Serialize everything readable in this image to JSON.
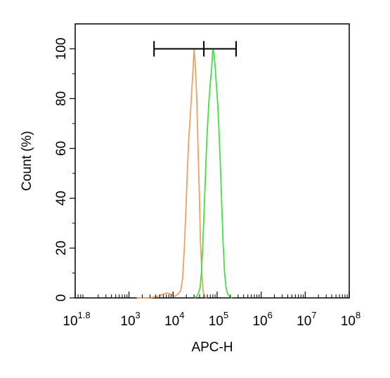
{
  "chart_data": {
    "type": "histogram",
    "title": "",
    "xlabel": "APC-H",
    "ylabel": "Count  (%)",
    "x_scale": "log",
    "xlim": [
      60,
      100000000
    ],
    "ylim": [
      0,
      110
    ],
    "x_ticks": [
      {
        "value": 60,
        "base": "10",
        "exp": "1.8"
      },
      {
        "value": 1000,
        "base": "10",
        "exp": "3"
      },
      {
        "value": 10000,
        "base": "10",
        "exp": "4"
      },
      {
        "value": 100000,
        "base": "10",
        "exp": "5"
      },
      {
        "value": 1000000,
        "base": "10",
        "exp": "6"
      },
      {
        "value": 10000000,
        "base": "10",
        "exp": "7"
      },
      {
        "value": 100000000,
        "base": "10",
        "exp": "8"
      }
    ],
    "y_ticks": [
      "0",
      "20",
      "40",
      "60",
      "80",
      "100"
    ],
    "gate": {
      "x_start": 3700,
      "x_end": 270000,
      "x_divider": 50000,
      "y": 100
    },
    "series": [
      {
        "color": "#f0a060",
        "points": [
          [
            1500,
            0
          ],
          [
            2800,
            0
          ],
          [
            4000,
            0.4
          ],
          [
            5500,
            1.2
          ],
          [
            7000,
            2
          ],
          [
            9000,
            1.5
          ],
          [
            11000,
            0.6
          ],
          [
            13000,
            1.5
          ],
          [
            15000,
            3
          ],
          [
            16500,
            8
          ],
          [
            18000,
            20
          ],
          [
            19500,
            35
          ],
          [
            21000,
            50
          ],
          [
            22500,
            62
          ],
          [
            24000,
            70
          ],
          [
            25500,
            78
          ],
          [
            27000,
            85
          ],
          [
            28500,
            92
          ],
          [
            30000,
            100
          ],
          [
            31500,
            95
          ],
          [
            33000,
            88
          ],
          [
            34500,
            80
          ],
          [
            36000,
            68
          ],
          [
            38000,
            52
          ],
          [
            40000,
            38
          ],
          [
            42000,
            22
          ],
          [
            45000,
            10
          ],
          [
            48000,
            3
          ],
          [
            52000,
            0.5
          ],
          [
            58000,
            0
          ]
        ]
      },
      {
        "color": "#44e044",
        "points": [
          [
            30000,
            0
          ],
          [
            34000,
            0.5
          ],
          [
            38000,
            2
          ],
          [
            41000,
            4
          ],
          [
            44000,
            10
          ],
          [
            47000,
            20
          ],
          [
            50000,
            32
          ],
          [
            54000,
            48
          ],
          [
            58000,
            62
          ],
          [
            62000,
            72
          ],
          [
            66000,
            80
          ],
          [
            70000,
            86
          ],
          [
            75000,
            92
          ],
          [
            80000,
            100
          ],
          [
            85000,
            98
          ],
          [
            90000,
            93
          ],
          [
            96000,
            86
          ],
          [
            103000,
            78
          ],
          [
            110000,
            68
          ],
          [
            118000,
            54
          ],
          [
            127000,
            38
          ],
          [
            137000,
            22
          ],
          [
            148000,
            10
          ],
          [
            160000,
            4
          ],
          [
            175000,
            1.5
          ],
          [
            195000,
            0.3
          ],
          [
            220000,
            0
          ]
        ]
      }
    ],
    "legend": "none",
    "grid": false
  }
}
